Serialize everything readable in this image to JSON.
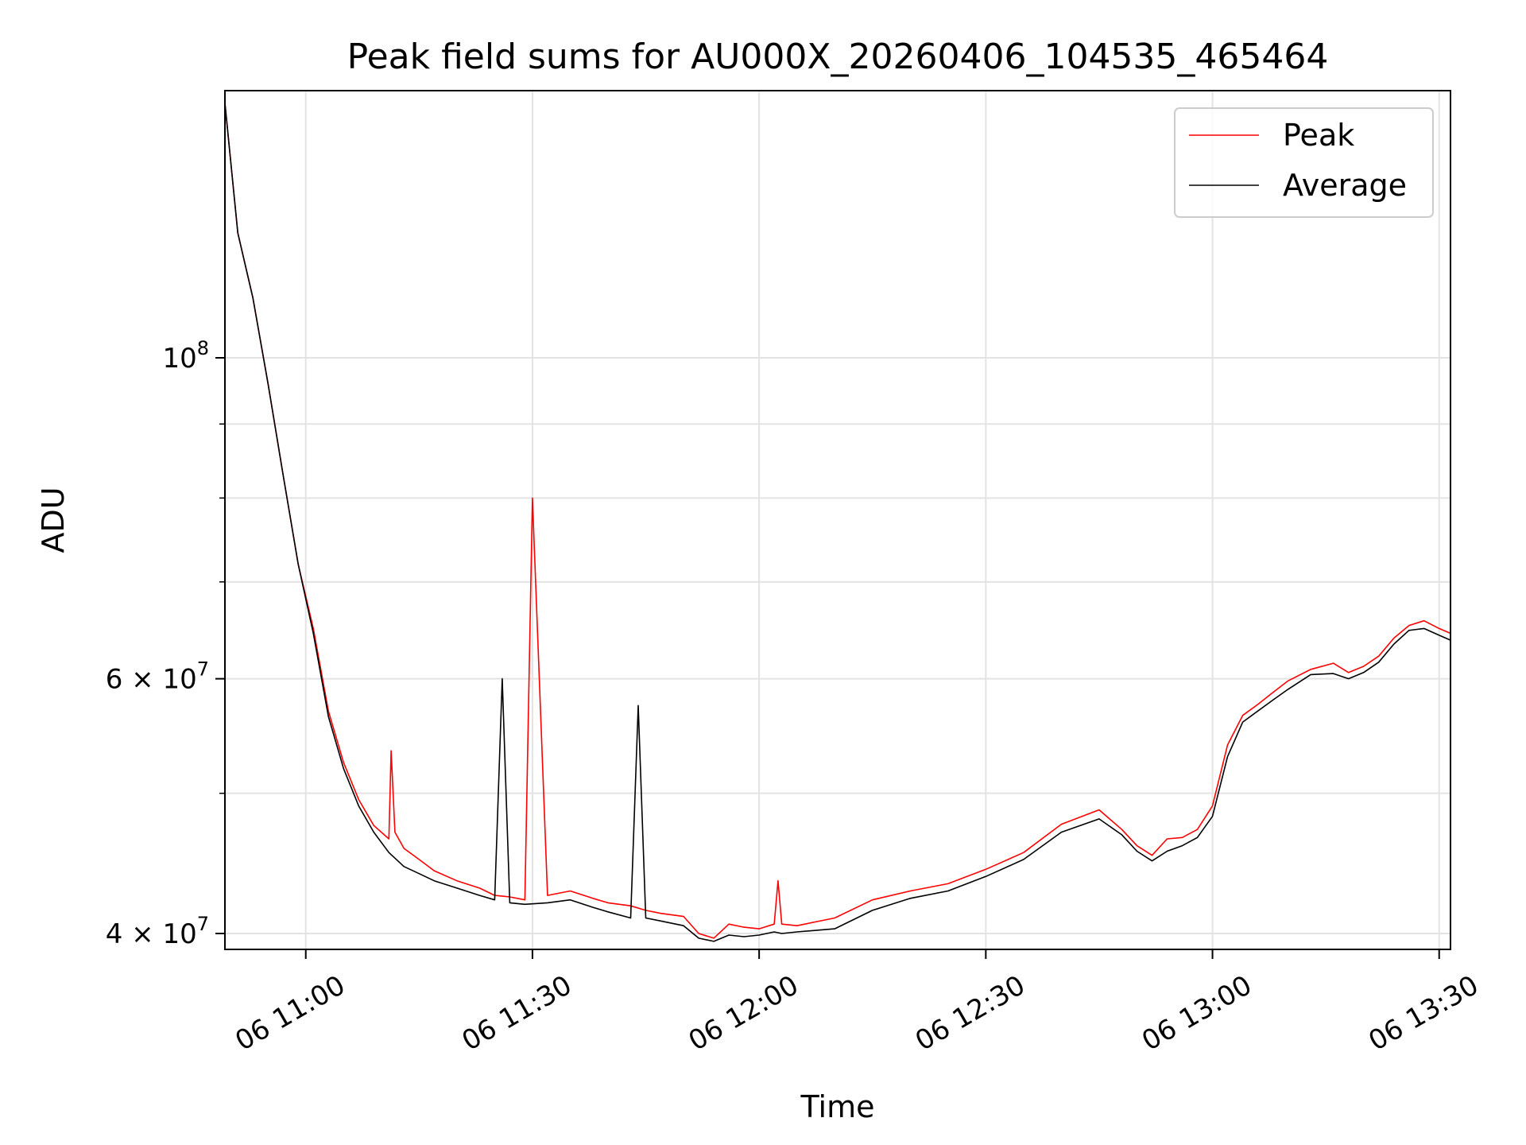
{
  "chart_data": {
    "type": "line",
    "title": "Peak field sums for AU000X_20260406_104535_465464",
    "xlabel": "Time",
    "ylabel": "ADU",
    "yscale": "log",
    "ylim": [
      39000000,
      153000000
    ],
    "xlim_minutes": [
      -10.7,
      151.5
    ],
    "x_unit": "minutes after 06 11:00",
    "grid": true,
    "legend_position": "top-right",
    "x_ticks": [
      {
        "minutes": 0,
        "label": "06 11:00"
      },
      {
        "minutes": 30,
        "label": "06 11:30"
      },
      {
        "minutes": 60,
        "label": "06 12:00"
      },
      {
        "minutes": 90,
        "label": "06 12:30"
      },
      {
        "minutes": 120,
        "label": "06 13:00"
      },
      {
        "minutes": 150,
        "label": "06 13:30"
      }
    ],
    "y_major_ticks": [
      {
        "value": 40000000,
        "base": "4 × 10",
        "exp": "7"
      },
      {
        "value": 60000000,
        "base": "6 × 10",
        "exp": "7"
      },
      {
        "value": 100000000,
        "base": "10",
        "exp": "8"
      }
    ],
    "y_minor_ticks": [
      50000000,
      70000000,
      80000000,
      90000000
    ],
    "series": [
      {
        "name": "Peak",
        "color": "#ff0000",
        "x": [
          -10.7,
          -9,
          -7,
          -5,
          -3,
          -1,
          1,
          3,
          5,
          7,
          9,
          10,
          11,
          11.3,
          11.8,
          13,
          15,
          17,
          20,
          23,
          25,
          27,
          29,
          30,
          32,
          35,
          38,
          40,
          43,
          45,
          47,
          50,
          52,
          54,
          56,
          58,
          60,
          62,
          62.5,
          63,
          65,
          70,
          75,
          80,
          85,
          90,
          95,
          100,
          105,
          108,
          110,
          112,
          114,
          116,
          118,
          120,
          122,
          124,
          126,
          128,
          130,
          133,
          136,
          138,
          140,
          142,
          144,
          146,
          148,
          150,
          151.5
        ],
        "values": [
          150000000,
          122000000,
          110000000,
          96000000,
          83000000,
          72000000,
          65000000,
          57000000,
          52500000,
          49500000,
          47500000,
          47000000,
          46500000,
          53500000,
          47000000,
          45800000,
          45000000,
          44200000,
          43500000,
          43000000,
          42500000,
          42400000,
          42200000,
          80000000,
          42500000,
          42800000,
          42300000,
          42000000,
          41800000,
          41500000,
          41300000,
          41100000,
          40000000,
          39700000,
          40600000,
          40400000,
          40300000,
          40600000,
          43500000,
          40600000,
          40500000,
          41000000,
          42200000,
          42800000,
          43300000,
          44300000,
          45500000,
          47600000,
          48700000,
          47200000,
          46000000,
          45300000,
          46500000,
          46600000,
          47200000,
          49000000,
          54000000,
          56600000,
          57600000,
          58700000,
          59800000,
          60900000,
          61500000,
          60600000,
          61200000,
          62200000,
          64000000,
          65300000,
          65800000,
          65000000,
          64500000
        ]
      },
      {
        "name": "Average",
        "color": "#000000",
        "x": [
          -10.7,
          -9,
          -7,
          -5,
          -3,
          -1,
          1,
          3,
          5,
          7,
          9,
          11,
          13,
          15,
          17,
          20,
          23,
          25,
          26,
          27,
          29,
          32,
          35,
          38,
          40,
          43,
          44,
          45,
          47,
          50,
          52,
          54,
          56,
          58,
          60,
          62,
          63,
          65,
          70,
          75,
          80,
          85,
          90,
          95,
          100,
          105,
          108,
          110,
          112,
          114,
          116,
          118,
          120,
          122,
          124,
          126,
          128,
          130,
          133,
          136,
          138,
          140,
          142,
          144,
          146,
          148,
          150,
          151.5
        ],
        "values": [
          150000000,
          122000000,
          110000000,
          96000000,
          83000000,
          72000000,
          64500000,
          56500000,
          52000000,
          49000000,
          47000000,
          45500000,
          44500000,
          44000000,
          43500000,
          43000000,
          42500000,
          42200000,
          60000000,
          42000000,
          41900000,
          42000000,
          42200000,
          41700000,
          41400000,
          41000000,
          57500000,
          41000000,
          40800000,
          40500000,
          39700000,
          39500000,
          39900000,
          39800000,
          39900000,
          40100000,
          40000000,
          40100000,
          40300000,
          41500000,
          42300000,
          42800000,
          43800000,
          45000000,
          47000000,
          48000000,
          46800000,
          45600000,
          44900000,
          45600000,
          46000000,
          46600000,
          48200000,
          53000000,
          56000000,
          57000000,
          58000000,
          59000000,
          60400000,
          60500000,
          60000000,
          60600000,
          61600000,
          63400000,
          64800000,
          65000000,
          64300000,
          63800000
        ]
      }
    ]
  }
}
